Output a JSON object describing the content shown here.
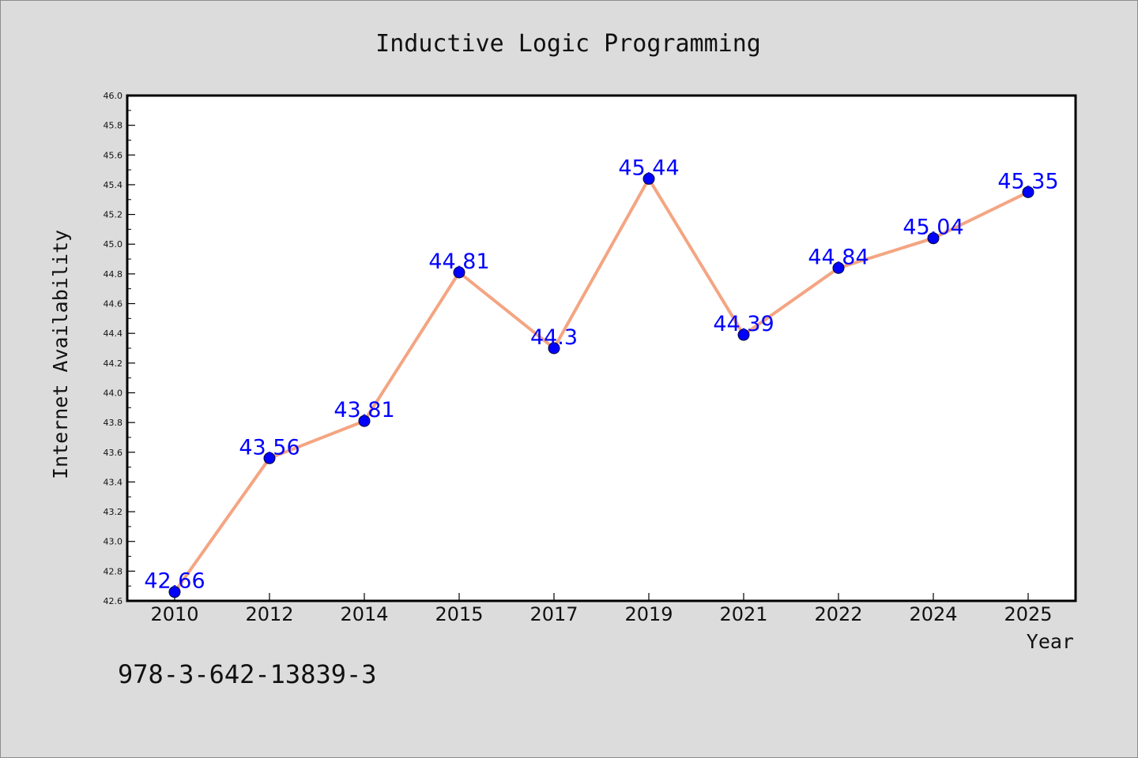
{
  "chart_data": {
    "type": "line",
    "title": "Inductive Logic Programming",
    "xlabel": "Year",
    "ylabel": "Internet Availability",
    "categories": [
      "2010",
      "2012",
      "2014",
      "2015",
      "2017",
      "2019",
      "2021",
      "2022",
      "2024",
      "2025"
    ],
    "values": [
      42.66,
      43.56,
      43.81,
      44.81,
      44.3,
      45.44,
      44.39,
      44.84,
      45.04,
      45.35
    ],
    "data_labels": [
      "42.66",
      "43.56",
      "43.81",
      "44.81",
      "44.3",
      "45.44",
      "44.39",
      "44.84",
      "45.04",
      "45.35"
    ],
    "ylim": [
      42.6,
      46.0
    ],
    "yticks": [
      "42.6",
      "42.8",
      "43.0",
      "43.2",
      "43.4",
      "43.6",
      "43.8",
      "44.0",
      "44.2",
      "44.4",
      "44.6",
      "44.8",
      "45.0",
      "45.2",
      "45.4",
      "45.6",
      "45.8",
      "46.0"
    ],
    "grid": false,
    "line_color": "#f4a582",
    "marker_color": "#0000ff",
    "label_color": "#0000ff"
  },
  "footer": {
    "isbn": "978-3-642-13839-3"
  }
}
